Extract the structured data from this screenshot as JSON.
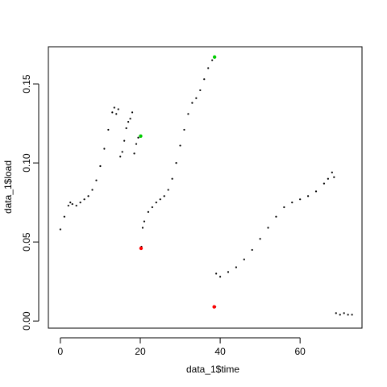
{
  "chart_data": {
    "type": "scatter",
    "title": "",
    "xlabel": "data_1$time",
    "ylabel": "data_1$load",
    "xlim": [
      -3,
      75.5
    ],
    "ylim": [
      -0.0045,
      0.1735
    ],
    "x_ticks": [
      0,
      20,
      40,
      60
    ],
    "x_tick_labels": [
      "0",
      "20",
      "40",
      "60"
    ],
    "y_ticks": [
      0.0,
      0.05,
      0.1,
      0.15
    ],
    "y_tick_labels": [
      "0.00",
      "0.05",
      "0.10",
      "0.15"
    ],
    "grid": false,
    "legend": "none",
    "colors": {
      "points": "#000000",
      "minima": "#ff0000",
      "maxima": "#00cc00"
    },
    "series": [
      {
        "role": "load",
        "x": [
          0,
          1,
          2,
          2.5,
          3,
          4,
          5,
          6,
          7,
          8,
          9,
          10,
          11,
          12,
          13,
          13.5,
          14,
          14.5,
          15,
          15.5,
          16,
          16.5,
          17,
          17.5,
          18,
          18.5,
          19,
          19.5,
          20,
          20.3,
          20.6,
          21,
          22,
          23,
          24,
          25,
          26,
          27,
          28,
          29,
          30,
          31,
          32,
          33,
          34,
          35,
          36,
          37,
          38,
          38.5,
          38.8,
          39,
          40,
          42,
          44,
          46,
          48,
          50,
          52,
          54,
          56,
          58,
          60,
          62,
          64,
          66,
          67,
          68,
          68.5,
          69,
          70,
          71,
          72,
          73
        ],
        "y": [
          0.058,
          0.066,
          0.073,
          0.075,
          0.074,
          0.073,
          0.075,
          0.077,
          0.079,
          0.083,
          0.089,
          0.098,
          0.109,
          0.121,
          0.132,
          0.135,
          0.131,
          0.134,
          0.104,
          0.107,
          0.114,
          0.122,
          0.126,
          0.128,
          0.132,
          0.106,
          0.112,
          0.116,
          0.117,
          0.047,
          0.059,
          0.063,
          0.069,
          0.072,
          0.075,
          0.077,
          0.079,
          0.083,
          0.09,
          0.1,
          0.111,
          0.121,
          0.131,
          0.138,
          0.141,
          0.146,
          0.153,
          0.16,
          0.165,
          0.167,
          0.009,
          0.03,
          0.028,
          0.031,
          0.034,
          0.039,
          0.045,
          0.052,
          0.059,
          0.066,
          0.072,
          0.075,
          0.077,
          0.079,
          0.082,
          0.087,
          0.09,
          0.094,
          0.091,
          0.005,
          0.004,
          0.005,
          0.004,
          0.004
        ]
      },
      {
        "role": "minima",
        "x": [
          20.2,
          38.5
        ],
        "y": [
          0.046,
          0.009
        ]
      },
      {
        "role": "maxima",
        "x": [
          20.1,
          38.6
        ],
        "y": [
          0.117,
          0.167
        ]
      }
    ]
  }
}
